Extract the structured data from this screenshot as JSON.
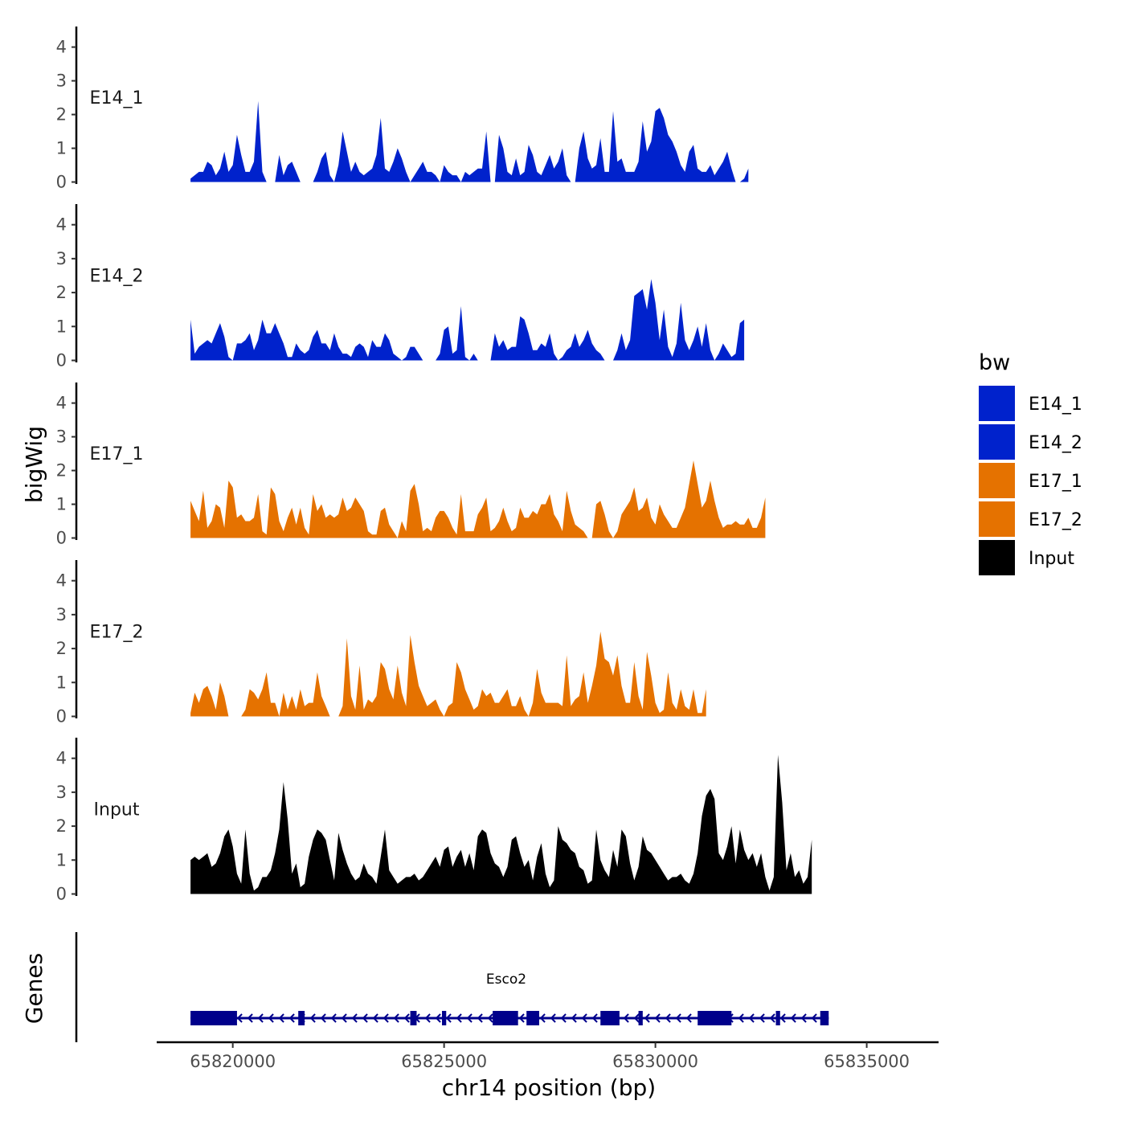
{
  "chart_data": {
    "type": "area",
    "region": "chr14",
    "ylabel_tracks": "bigWig",
    "ylabel_genes": "Genes",
    "xlabel": "chr14 position (bp)",
    "xlim": [
      65818200,
      65836700
    ],
    "x_ticks": [
      65820000,
      65825000,
      65830000,
      65835000
    ],
    "x_tick_labels": [
      "65820000",
      "65825000",
      "65830000",
      "65835000"
    ],
    "ylim": [
      0,
      4.3
    ],
    "y_ticks": [
      0,
      1,
      2,
      3,
      4
    ],
    "y_tick_labels": [
      "0",
      "1",
      "2",
      "3",
      "4"
    ],
    "legend": {
      "title": "bw",
      "entries": [
        {
          "label": "E14_1",
          "color": "#0022CC"
        },
        {
          "label": "E14_2",
          "color": "#0022CC"
        },
        {
          "label": "E17_1",
          "color": "#E57200"
        },
        {
          "label": "E17_2",
          "color": "#E57200"
        },
        {
          "label": "Input",
          "color": "#000000"
        }
      ]
    },
    "track_start": 65819000,
    "track_step": 100,
    "series": [
      {
        "name": "E14_1",
        "color": "#0022CC",
        "values": [
          0.1,
          0.2,
          0.3,
          0.3,
          0.6,
          0.5,
          0.2,
          0.4,
          0.9,
          0.3,
          0.5,
          1.4,
          0.8,
          0.3,
          0.3,
          0.6,
          2.4,
          0.3,
          0,
          0,
          0,
          0.8,
          0.2,
          0.5,
          0.6,
          0.3,
          0,
          0,
          0,
          0,
          0.3,
          0.7,
          0.9,
          0.2,
          0,
          0.5,
          1.5,
          0.9,
          0.3,
          0.6,
          0.3,
          0.2,
          0.3,
          0.4,
          0.8,
          1.9,
          0.4,
          0.3,
          0.6,
          1.0,
          0.7,
          0.3,
          0,
          0.2,
          0.4,
          0.6,
          0.3,
          0.3,
          0.2,
          0,
          0.5,
          0.3,
          0.2,
          0.2,
          0,
          0.3,
          0.2,
          0.3,
          0.4,
          0.4,
          1.5,
          0,
          0,
          1.4,
          1.0,
          0.3,
          0.2,
          0.7,
          0.2,
          0.3,
          1.1,
          0.8,
          0.3,
          0.2,
          0.5,
          0.8,
          0.4,
          0.6,
          1.0,
          0.2,
          0,
          0,
          1.0,
          1.5,
          0.7,
          0.4,
          0.5,
          1.3,
          0.3,
          0.3,
          2.1,
          0.6,
          0.7,
          0.3,
          0.3,
          0.3,
          0.6,
          1.8,
          0.9,
          1.2,
          2.1,
          2.2,
          1.9,
          1.4,
          1.2,
          0.9,
          0.5,
          0.3,
          0.9,
          1.1,
          0.4,
          0.3,
          0.3,
          0.5,
          0.2,
          0.4,
          0.6,
          0.9,
          0.4,
          0,
          0,
          0.1,
          0.4
        ]
      },
      {
        "name": "E14_2",
        "color": "#0022CC",
        "values": [
          1.2,
          0.2,
          0.4,
          0.5,
          0.6,
          0.5,
          0.8,
          1.1,
          0.7,
          0.1,
          0,
          0.5,
          0.5,
          0.6,
          0.8,
          0.3,
          0.6,
          1.2,
          0.8,
          0.8,
          1.1,
          0.8,
          0.5,
          0.1,
          0.1,
          0.5,
          0.3,
          0.2,
          0.3,
          0.7,
          0.9,
          0.5,
          0.5,
          0.3,
          0.8,
          0.4,
          0.2,
          0.2,
          0.1,
          0.4,
          0.5,
          0.4,
          0.1,
          0.6,
          0.4,
          0.4,
          0.8,
          0.6,
          0.2,
          0.1,
          0,
          0.1,
          0.4,
          0.4,
          0.2,
          0,
          0,
          0,
          0,
          0.2,
          0.9,
          1.0,
          0.2,
          0.3,
          1.6,
          0.1,
          0,
          0.2,
          0,
          0,
          0,
          0,
          0.8,
          0.4,
          0.6,
          0.3,
          0.4,
          0.4,
          1.3,
          1.2,
          0.8,
          0.3,
          0.3,
          0.5,
          0.4,
          0.8,
          0.2,
          0,
          0.1,
          0.3,
          0.4,
          0.8,
          0.4,
          0.6,
          0.9,
          0.5,
          0.3,
          0.2,
          0,
          0,
          0,
          0.3,
          0.8,
          0.3,
          0.6,
          1.9,
          2.0,
          2.1,
          1.5,
          2.4,
          1.7,
          0.6,
          1.5,
          0.4,
          0.1,
          0.5,
          1.7,
          0.6,
          0.3,
          0.6,
          1.0,
          0.4,
          1.1,
          0.3,
          0,
          0.2,
          0.5,
          0.3,
          0.1,
          0.2,
          1.1,
          1.2
        ]
      },
      {
        "name": "E17_1",
        "color": "#E57200",
        "values": [
          1.1,
          0.8,
          0.5,
          1.4,
          0.3,
          0.5,
          1.0,
          0.9,
          0.3,
          1.7,
          1.5,
          0.6,
          0.7,
          0.5,
          0.5,
          0.6,
          1.3,
          0.2,
          0.1,
          1.5,
          1.3,
          0.5,
          0.2,
          0.6,
          0.9,
          0.4,
          0.9,
          0.3,
          0.1,
          1.3,
          0.8,
          1.0,
          0.6,
          0.7,
          0.6,
          0.7,
          1.2,
          0.8,
          0.9,
          1.2,
          1.0,
          0.8,
          0.2,
          0.1,
          0.1,
          0.8,
          0.9,
          0.4,
          0.2,
          0,
          0.5,
          0.2,
          1.4,
          1.6,
          1.0,
          0.2,
          0.3,
          0.2,
          0.6,
          0.8,
          0.8,
          0.6,
          0.3,
          0.1,
          1.3,
          0.2,
          0.2,
          0.2,
          0.7,
          0.9,
          1.2,
          0.2,
          0.3,
          0.5,
          0.9,
          0.5,
          0.2,
          0.3,
          0.9,
          0.6,
          0.6,
          0.8,
          0.7,
          1.0,
          1.0,
          1.3,
          0.7,
          0.5,
          0.2,
          1.4,
          0.8,
          0.4,
          0.3,
          0.2,
          0,
          0,
          1.0,
          1.1,
          0.7,
          0.2,
          0,
          0.2,
          0.7,
          0.9,
          1.1,
          1.5,
          0.8,
          0.9,
          1.2,
          0.6,
          0.4,
          1.0,
          0.7,
          0.5,
          0.3,
          0.3,
          0.6,
          0.9,
          1.6,
          2.3,
          1.6,
          0.9,
          1.1,
          1.7,
          1.1,
          0.6,
          0.3,
          0.4,
          0.4,
          0.5,
          0.4,
          0.4,
          0.6,
          0.3,
          0.3,
          0.6,
          1.2
        ]
      },
      {
        "name": "E17_2",
        "color": "#E57200",
        "values": [
          0.1,
          0.7,
          0.4,
          0.8,
          0.9,
          0.6,
          0.2,
          1.0,
          0.6,
          0,
          0,
          0,
          0,
          0.2,
          0.8,
          0.7,
          0.5,
          0.8,
          1.3,
          0.4,
          0.4,
          0,
          0.7,
          0.2,
          0.6,
          0.2,
          0.8,
          0.3,
          0.4,
          0.4,
          1.3,
          0.6,
          0.3,
          0,
          0,
          0,
          0.3,
          2.3,
          0.6,
          0.2,
          1.5,
          0.2,
          0.5,
          0.4,
          0.6,
          1.6,
          1.4,
          0.8,
          0.5,
          1.5,
          0.7,
          0.3,
          2.4,
          1.6,
          0.9,
          0.6,
          0.3,
          0.4,
          0.5,
          0.2,
          0,
          0.3,
          0.4,
          1.6,
          1.3,
          0.8,
          0.5,
          0.2,
          0.3,
          0.8,
          0.6,
          0.7,
          0.4,
          0.4,
          0.6,
          0.8,
          0.3,
          0.3,
          0.6,
          0.2,
          0,
          0.4,
          1.4,
          0.7,
          0.4,
          0.4,
          0.4,
          0.4,
          0.3,
          1.8,
          0.3,
          0.5,
          0.6,
          1.3,
          0.4,
          0.9,
          1.5,
          2.5,
          1.7,
          1.6,
          1.2,
          1.8,
          0.9,
          0.4,
          0.4,
          1.6,
          0.6,
          0.2,
          1.9,
          1.2,
          0.4,
          0.1,
          0.2,
          1.3,
          0.4,
          0.2,
          0.8,
          0.3,
          0.2,
          0.8,
          0.1,
          0.1,
          0.8
        ]
      },
      {
        "name": "Input",
        "color": "#000000",
        "values": [
          1.0,
          1.1,
          1.0,
          1.1,
          1.2,
          0.8,
          0.9,
          1.2,
          1.7,
          1.9,
          1.4,
          0.6,
          0.3,
          1.9,
          0.6,
          0.1,
          0.2,
          0.5,
          0.5,
          0.7,
          1.2,
          1.9,
          3.3,
          2.2,
          0.6,
          0.9,
          0.2,
          0.3,
          1.1,
          1.6,
          1.9,
          1.8,
          1.6,
          1.0,
          0.4,
          1.8,
          1.3,
          0.9,
          0.6,
          0.4,
          0.5,
          0.9,
          0.6,
          0.5,
          0.3,
          1.1,
          1.9,
          0.7,
          0.5,
          0.3,
          0.4,
          0.5,
          0.5,
          0.6,
          0.4,
          0.5,
          0.7,
          0.9,
          1.1,
          0.8,
          1.3,
          1.4,
          0.8,
          1.1,
          1.3,
          0.8,
          1.2,
          0.7,
          1.7,
          1.9,
          1.8,
          1.2,
          0.9,
          0.8,
          0.5,
          0.8,
          1.6,
          1.7,
          1.2,
          0.8,
          1.0,
          0.4,
          1.1,
          1.5,
          0.6,
          0.2,
          0.4,
          2.0,
          1.6,
          1.5,
          1.3,
          1.2,
          0.8,
          0.7,
          0.3,
          0.4,
          1.9,
          1.0,
          0.7,
          0.5,
          1.3,
          0.8,
          1.9,
          1.7,
          0.9,
          0.4,
          0.8,
          1.7,
          1.3,
          1.2,
          1.0,
          0.8,
          0.6,
          0.4,
          0.5,
          0.5,
          0.6,
          0.4,
          0.3,
          0.6,
          1.2,
          2.3,
          2.9,
          3.1,
          2.8,
          1.2,
          1.0,
          1.4,
          2.0,
          0.9,
          1.9,
          1.3,
          1.0,
          1.2,
          0.8,
          1.2,
          0.5,
          0.1,
          0.5,
          4.1,
          2.7,
          0.7,
          1.2,
          0.5,
          0.7,
          0.3,
          0.5,
          1.6
        ]
      }
    ],
    "gene": {
      "name": "Esco2",
      "color": "#00008B",
      "strand": "-",
      "start": 65819000,
      "end": 65834100,
      "exons": [
        {
          "start": 65819000,
          "end": 65820100
        },
        {
          "start": 65821550,
          "end": 65821700
        },
        {
          "start": 65824200,
          "end": 65824350
        },
        {
          "start": 65824950,
          "end": 65825050
        },
        {
          "start": 65826150,
          "end": 65826750
        },
        {
          "start": 65826950,
          "end": 65827250
        },
        {
          "start": 65828700,
          "end": 65829150
        },
        {
          "start": 65829600,
          "end": 65829700
        },
        {
          "start": 65831000,
          "end": 65831800
        },
        {
          "start": 65832850,
          "end": 65832950
        },
        {
          "start": 65833900,
          "end": 65834100
        }
      ]
    }
  }
}
